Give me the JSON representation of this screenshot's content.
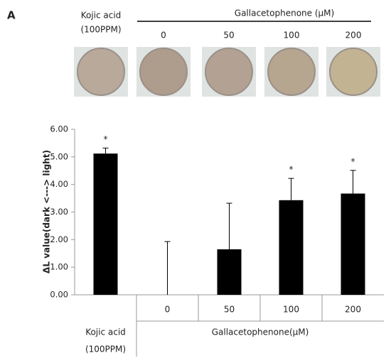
{
  "panel_label": "A",
  "header": {
    "control": [
      "Kojic acid",
      "(100PPM)"
    ],
    "group": "Gallacetophenone (μM)",
    "doses": [
      "0",
      "50",
      "100",
      "200"
    ],
    "well_colors": [
      "#b9a99b",
      "#ae9c8d",
      "#b3a293",
      "#b6a58f",
      "#c2b392"
    ]
  },
  "chart_data": {
    "type": "bar",
    "ylabel": "ΔL value(dark <---> light)",
    "categories": [
      [
        "Kojic acid",
        "(100PPM)"
      ],
      "0",
      "50",
      "100",
      "200"
    ],
    "group_label": "Gallacetophenone(μM)",
    "values": [
      5.12,
      0,
      1.65,
      3.43,
      3.67
    ],
    "errors": [
      0.2,
      1.93,
      1.67,
      0.79,
      0.84
    ],
    "annotations": [
      "*",
      null,
      null,
      "*",
      "*"
    ],
    "color": "#000000",
    "ylim": [
      0,
      6
    ],
    "yticks": [
      {
        "value": 0,
        "label": "0.00"
      },
      {
        "value": 1,
        "label": "1.00"
      },
      {
        "value": 2,
        "label": "2.00"
      },
      {
        "value": 3,
        "label": "3.00"
      },
      {
        "value": 4,
        "label": "4.00"
      },
      {
        "value": 5,
        "label": "5.00"
      },
      {
        "value": 6,
        "label": "6.00"
      }
    ]
  }
}
